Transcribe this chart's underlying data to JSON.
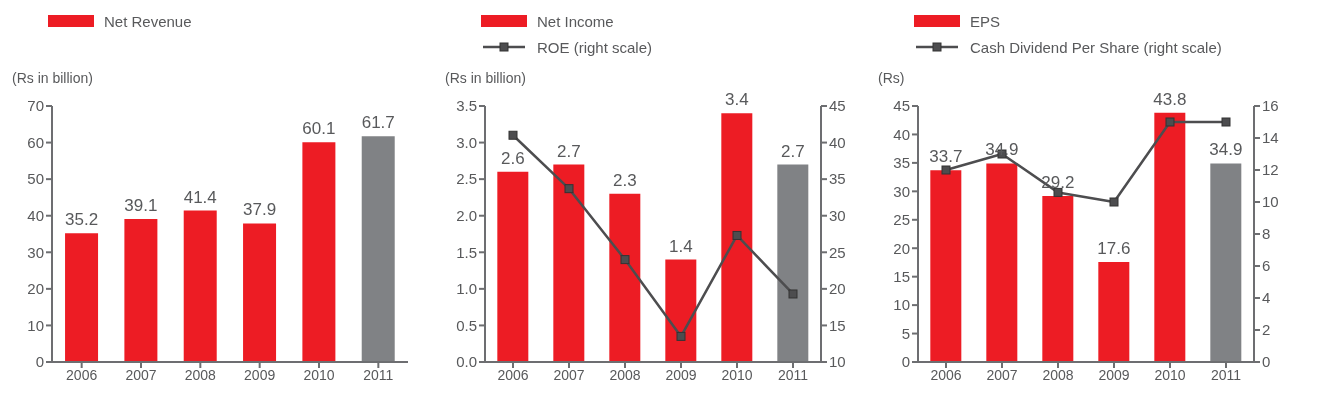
{
  "chart_data": [
    {
      "type": "bar",
      "ylabel": "(Rs in billion)",
      "categories": [
        "2006",
        "2007",
        "2008",
        "2009",
        "2010",
        "2011"
      ],
      "series": [
        {
          "name": "Net Revenue",
          "color": "#ed1c24",
          "colors": [
            "#ed1c24",
            "#ed1c24",
            "#ed1c24",
            "#ed1c24",
            "#ed1c24",
            "#808285"
          ],
          "values": [
            35.2,
            39.1,
            41.4,
            37.9,
            60.1,
            61.7
          ],
          "value_labels": [
            "35.2",
            "39.1",
            "41.4",
            "37.9",
            "60.1",
            "61.7"
          ]
        }
      ],
      "ylim": [
        0,
        70
      ],
      "yticks": [
        0,
        10,
        20,
        30,
        40,
        50,
        60,
        70
      ],
      "grid": false,
      "legend": "top left"
    },
    {
      "type": "bar",
      "ylabel": "(Rs in billion)",
      "categories": [
        "2006",
        "2007",
        "2008",
        "2009",
        "2010",
        "2011"
      ],
      "series": [
        {
          "name": "Net Income",
          "color": "#ed1c24",
          "colors": [
            "#ed1c24",
            "#ed1c24",
            "#ed1c24",
            "#ed1c24",
            "#ed1c24",
            "#808285"
          ],
          "values": [
            2.6,
            2.7,
            2.3,
            1.4,
            3.4,
            2.7
          ],
          "value_labels": [
            "2.6",
            "2.7",
            "2.3",
            "1.4",
            "3.4",
            "2.7"
          ]
        },
        {
          "name": "ROE (right scale)",
          "type": "line",
          "axis": "y2",
          "color": "#4d4d4f",
          "values": [
            41,
            33.7,
            24,
            13.5,
            27.3,
            19.3
          ]
        }
      ],
      "ylim": [
        0,
        3.5
      ],
      "yticks": [
        {
          "value": 0,
          "label": "0.0"
        },
        0.5,
        {
          "value": 1,
          "label": "1.0"
        },
        1.5,
        {
          "value": 2,
          "label": "2.0"
        },
        2.5,
        {
          "value": 3,
          "label": "3.0"
        },
        3.5
      ],
      "y2lim": [
        10,
        45
      ],
      "y2ticks": [
        10,
        15,
        20,
        25,
        30,
        35,
        40,
        45
      ],
      "grid": false,
      "legend": "top left",
      "marker": "square",
      "line_style": "solid"
    },
    {
      "type": "bar",
      "ylabel": "(Rs)",
      "categories": [
        "2006",
        "2007",
        "2008",
        "2009",
        "2010",
        "2011"
      ],
      "series": [
        {
          "name": "EPS",
          "color": "#ed1c24",
          "colors": [
            "#ed1c24",
            "#ed1c24",
            "#ed1c24",
            "#ed1c24",
            "#ed1c24",
            "#808285"
          ],
          "values": [
            33.7,
            34.9,
            29.2,
            17.6,
            43.8,
            34.9
          ],
          "value_labels": [
            "33.7",
            "34.9",
            "29.2",
            "17.6",
            "43.8",
            "34.9"
          ]
        },
        {
          "name": "Cash Dividend Per Share (right scale)",
          "type": "line",
          "axis": "y2",
          "color": "#4d4d4f",
          "values": [
            12,
            13,
            10.6,
            10,
            15,
            15
          ]
        }
      ],
      "ylim": [
        0,
        45
      ],
      "yticks": [
        0,
        5,
        10,
        15,
        20,
        25,
        30,
        35,
        40,
        45
      ],
      "y2lim": [
        0,
        16
      ],
      "y2ticks": [
        0,
        2,
        4,
        6,
        8,
        10,
        12,
        14,
        16
      ],
      "grid": false,
      "legend": "top left",
      "marker": "square",
      "line_style": "solid"
    }
  ]
}
